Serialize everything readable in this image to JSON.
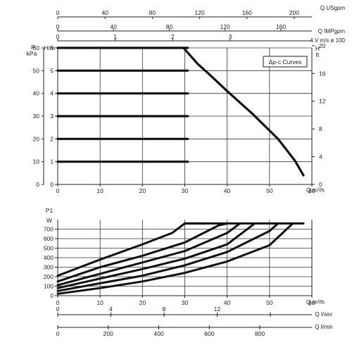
{
  "chart_data": [
    {
      "type": "line",
      "title": "",
      "legend_box": "Δp-c Curves",
      "xlabel": "Q m³/h",
      "xlim": [
        0,
        60
      ],
      "x_ticks": [
        "0",
        "10",
        "20",
        "30",
        "40",
        "50",
        "60"
      ],
      "left_axes": [
        {
          "label_top": "P",
          "label_bottom": "kPa",
          "ylim": [
            0,
            60
          ],
          "ticks": [
            "0",
            "10",
            "20",
            "30",
            "40",
            "50",
            "60"
          ]
        },
        {
          "label": "H/m",
          "ylim": [
            0,
            6
          ],
          "ticks": [
            "0",
            "1",
            "2",
            "3",
            "4",
            "5",
            "6"
          ]
        }
      ],
      "right_axis": {
        "label_top": "H",
        "label_bottom": "ft",
        "ylim": [
          0,
          20
        ],
        "ticks": [
          "0",
          "4",
          "8",
          "12",
          "16",
          "20"
        ]
      },
      "top_axes": [
        {
          "label": "Q USgpm",
          "ticks": [
            "0",
            "40",
            "80",
            "120",
            "160",
            "200"
          ]
        },
        {
          "label": "Q IMPgpm",
          "ticks": [
            "0",
            "40",
            "80",
            "120",
            "160"
          ]
        },
        {
          "label": "4 V m/s ø 100",
          "ticks": [
            "0",
            "1",
            "2",
            "3"
          ]
        }
      ],
      "series": [
        {
          "x": [
            0,
            30.7
          ],
          "y": [
            1,
            1
          ]
        },
        {
          "x": [
            0,
            30.7
          ],
          "y": [
            2,
            2
          ]
        },
        {
          "x": [
            0,
            30.7
          ],
          "y": [
            3,
            3
          ]
        },
        {
          "x": [
            0,
            30.7
          ],
          "y": [
            4,
            4
          ]
        },
        {
          "x": [
            0,
            30.7
          ],
          "y": [
            5,
            5
          ]
        },
        {
          "x": [
            0,
            30.7
          ],
          "y": [
            6,
            6
          ]
        },
        {
          "x": [
            29.7,
            33,
            36,
            40,
            46,
            52,
            56,
            58
          ],
          "y": [
            6,
            5.3,
            4.8,
            4.1,
            3.1,
            2,
            1.05,
            0.4
          ]
        }
      ],
      "cutoff": {
        "x": [
          30.7,
          34,
          38.5,
          40,
          45,
          46,
          52,
          56
        ],
        "y": [
          5,
          4.6,
          4,
          3.8,
          3.1,
          3,
          2,
          1
        ]
      },
      "grid": true
    },
    {
      "type": "line",
      "title": "",
      "ylabel": "P1",
      "y_unit": "W",
      "xlabel": "Q m³/h",
      "xlim": [
        0,
        60
      ],
      "ylim": [
        0,
        800
      ],
      "x_ticks": [
        "0",
        "10",
        "20",
        "30",
        "40",
        "50",
        "60"
      ],
      "y_ticks": [
        "0",
        "100",
        "200",
        "300",
        "400",
        "500",
        "600",
        "700"
      ],
      "bottom_axes": [
        {
          "label": "Q l/sec",
          "ticks": [
            "0",
            "4",
            "8",
            "12",
            "16"
          ]
        },
        {
          "label": "Q l/min",
          "ticks": [
            "0",
            "200",
            "400",
            "600",
            "800"
          ]
        }
      ],
      "series": [
        {
          "x": [
            0,
            10,
            20,
            27,
            30,
            35
          ],
          "y": [
            210,
            380,
            540,
            660,
            760,
            760
          ]
        },
        {
          "x": [
            0,
            10,
            20,
            30,
            38,
            40
          ],
          "y": [
            150,
            300,
            420,
            560,
            740,
            760
          ]
        },
        {
          "x": [
            0,
            10,
            20,
            30,
            40,
            43
          ],
          "y": [
            110,
            230,
            350,
            470,
            660,
            760
          ]
        },
        {
          "x": [
            0,
            10,
            20,
            30,
            40,
            46.5
          ],
          "y": [
            80,
            180,
            280,
            390,
            540,
            760
          ]
        },
        {
          "x": [
            0,
            10,
            20,
            30,
            40,
            50,
            52
          ],
          "y": [
            50,
            130,
            210,
            320,
            460,
            680,
            760
          ]
        },
        {
          "x": [
            0,
            10,
            20,
            30,
            40,
            50,
            55.5
          ],
          "y": [
            20,
            80,
            150,
            240,
            360,
            530,
            760
          ]
        },
        {
          "x": [
            30,
            58
          ],
          "y": [
            760,
            760
          ]
        }
      ],
      "grid": true
    }
  ]
}
